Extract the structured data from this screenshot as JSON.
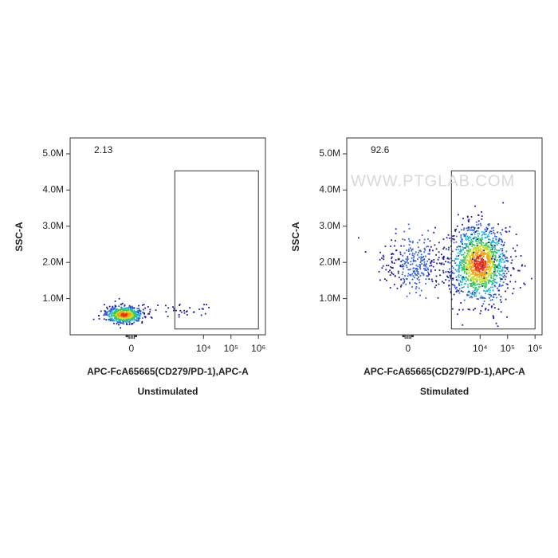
{
  "chart_data": [
    {
      "type": "scatter",
      "y_label": "SSC-A",
      "x_label": "APC-FcA65665(CD279/PD-1),APC-A",
      "caption": "Unstimulated",
      "xscale": "biexponential",
      "xlim": [
        -4000,
        1800000
      ],
      "ylim": [
        0,
        5440000
      ],
      "xticks": [
        0,
        {
          "value": 10000,
          "label": "10⁴"
        },
        {
          "value": 100000,
          "label": "10⁵"
        },
        {
          "value": 1000000,
          "label": "10⁶"
        }
      ],
      "yticks": [
        {
          "value": 1000000,
          "label": "1.0M"
        },
        {
          "value": 2000000,
          "label": "2.0M"
        },
        {
          "value": 3000000,
          "label": "3.0M"
        },
        {
          "value": 4000000,
          "label": "4.0M"
        },
        {
          "value": 5000000,
          "label": "5.0M"
        }
      ],
      "gate": {
        "x": [
          900,
          1000000
        ],
        "y": [
          160000,
          4530000
        ],
        "percent": 2.13
      }
    },
    {
      "type": "scatter",
      "y_label": "SSC-A",
      "x_label": "APC-FcA65665(CD279/PD-1),APC-A",
      "caption": "Stimulated",
      "xscale": "biexponential",
      "xlim": [
        -4000,
        1800000
      ],
      "ylim": [
        0,
        5440000
      ],
      "xticks": [
        0,
        {
          "value": 10000,
          "label": "10⁴"
        },
        {
          "value": 100000,
          "label": "10⁵"
        },
        {
          "value": 1000000,
          "label": "10⁶"
        }
      ],
      "yticks": [
        {
          "value": 1000000,
          "label": "1.0M"
        },
        {
          "value": 2000000,
          "label": "2.0M"
        },
        {
          "value": 3000000,
          "label": "3.0M"
        },
        {
          "value": 4000000,
          "label": "4.0M"
        },
        {
          "value": 5000000,
          "label": "5.0M"
        }
      ],
      "gate": {
        "x": [
          900,
          1000000
        ],
        "y": [
          160000,
          4530000
        ],
        "percent": 92.6
      },
      "watermark": "WWW.PTGLAB.COM"
    }
  ]
}
